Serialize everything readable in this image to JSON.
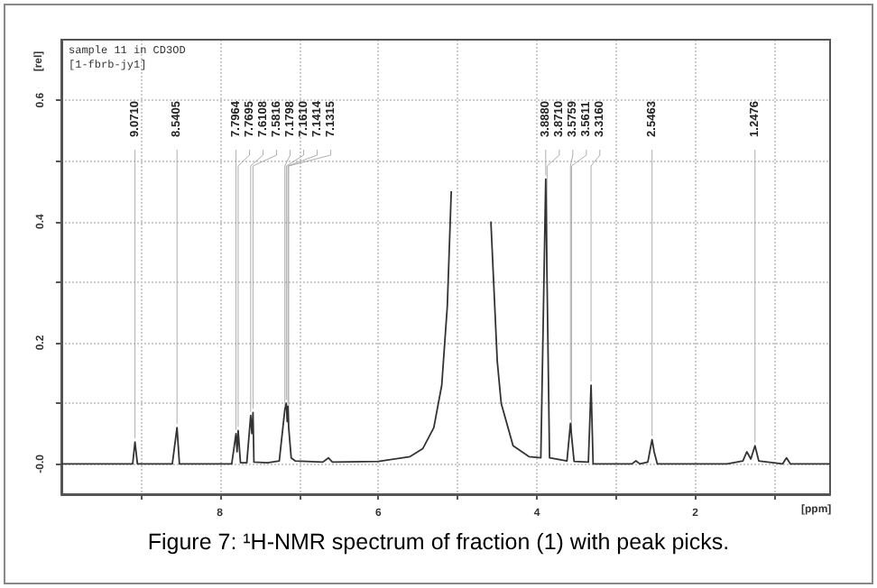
{
  "chart_data": {
    "type": "line",
    "title": "Figure 7: ¹H-NMR spectrum of fraction (1) with peak picks.",
    "xlabel": "[ppm]",
    "ylabel": "[rel]",
    "xlim": [
      10.0,
      0.3
    ],
    "ylim": [
      -0.05,
      0.7
    ],
    "xticks": [
      {
        "value": 9,
        "label": null
      },
      8,
      {
        "value": 7,
        "label": null
      },
      6,
      {
        "value": 5,
        "label": null
      },
      4,
      {
        "value": 3,
        "label": null
      },
      2,
      {
        "value": 1,
        "label": null
      }
    ],
    "yticks": [
      {
        "value": 0,
        "label": "-0.0"
      },
      {
        "value": 0.1,
        "label": null
      },
      0.2,
      {
        "value": 0.3,
        "label": null
      },
      0.4,
      {
        "value": 0.5,
        "label": null
      },
      0.6
    ],
    "grid": true,
    "marker": "none",
    "line_style": "solid",
    "series": [
      {
        "color": "#333333",
        "x": [
          10.0,
          9.2,
          9.1,
          9.071,
          9.04,
          8.6,
          8.5405,
          8.51,
          7.85,
          7.7964,
          7.783,
          7.7695,
          7.74,
          7.66,
          7.6108,
          7.596,
          7.5816,
          7.57,
          7.4,
          7.25,
          7.1798,
          7.161,
          7.15,
          7.1414,
          7.1315,
          7.1,
          7.05,
          6.7,
          6.63,
          6.58,
          6.0,
          5.6,
          5.44,
          5.3,
          5.2,
          5.13,
          5.08,
          5.04,
          4.84,
          4.64,
          4.58,
          4.5,
          4.45,
          4.3,
          4.1,
          3.95,
          3.888,
          3.871,
          3.84,
          3.62,
          3.5759,
          3.5611,
          3.53,
          3.35,
          3.316,
          3.29,
          2.8,
          2.75,
          2.7,
          2.6,
          2.5463,
          2.52,
          2.48,
          1.6,
          1.4,
          1.35,
          1.3,
          1.2476,
          1.2,
          0.9,
          0.85,
          0.8,
          0.3
        ],
        "values": [
          0.0,
          0.0,
          0.0,
          0.036,
          0.0,
          0.0,
          0.06,
          0.0,
          0.0,
          0.05,
          0.02,
          0.055,
          0.002,
          0.002,
          0.08,
          0.05,
          0.085,
          0.003,
          0.002,
          0.005,
          0.09,
          0.1,
          0.07,
          0.095,
          0.06,
          0.01,
          0.005,
          0.003,
          0.01,
          0.003,
          0.004,
          0.012,
          0.025,
          0.06,
          0.13,
          0.26,
          0.45,
          null,
          null,
          null,
          0.4,
          0.17,
          0.1,
          0.03,
          0.012,
          0.01,
          0.47,
          0.3,
          0.01,
          0.005,
          0.067,
          0.045,
          0.004,
          0.003,
          0.13,
          0.0,
          0.0,
          0.005,
          0.0,
          0.003,
          0.04,
          0.02,
          0.0,
          0.0,
          0.005,
          0.02,
          0.008,
          0.03,
          0.005,
          0.0,
          0.01,
          0.0,
          0.0
        ]
      }
    ],
    "annotations": [
      "sample 11 in CD3OD",
      "[1-fbrb-jy1]",
      {
        "text": "9.0710",
        "x": 9.071,
        "y": 0.036
      },
      {
        "text": "8.5405",
        "x": 8.5405,
        "y": 0.06
      },
      {
        "text": "7.7964",
        "x": 7.7964,
        "y": 0.05
      },
      {
        "text": "7.7695",
        "x": 7.7695,
        "y": 0.055
      },
      {
        "text": "7.6108",
        "x": 7.6108,
        "y": 0.08
      },
      {
        "text": "7.5816",
        "x": 7.5816,
        "y": 0.085
      },
      {
        "text": "7.1798",
        "x": 7.1798,
        "y": 0.09
      },
      {
        "text": "7.1610",
        "x": 7.161,
        "y": 0.1
      },
      {
        "text": "7.1414",
        "x": 7.1414,
        "y": 0.095
      },
      {
        "text": "7.1315",
        "x": 7.1315,
        "y": 0.06
      },
      {
        "text": "3.8880",
        "x": 3.888,
        "y": 0.47
      },
      {
        "text": "3.8710",
        "x": 3.871,
        "y": 0.3
      },
      {
        "text": "3.5759",
        "x": 3.5759,
        "y": 0.067
      },
      {
        "text": "3.5611",
        "x": 3.5611,
        "y": 0.045
      },
      {
        "text": "3.3160",
        "x": 3.316,
        "y": 0.13
      },
      {
        "text": "2.5463",
        "x": 2.5463,
        "y": 0.04
      },
      {
        "text": "1.2476",
        "x": 1.2476,
        "y": 0.03
      }
    ]
  }
}
